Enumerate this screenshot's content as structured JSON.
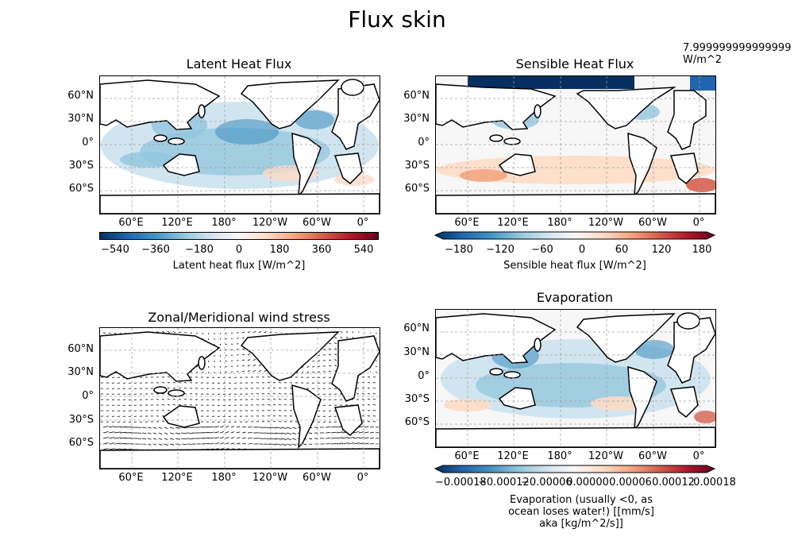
{
  "figure": {
    "title": "Flux skin"
  },
  "panels": {
    "latent": {
      "title": "Latent Heat Flux",
      "colorbar_label": "Latent heat flux [W/m^2]",
      "colorbar_ticks": [
        "−540",
        "−360",
        "−180",
        "0",
        "180",
        "360",
        "540"
      ]
    },
    "sensible": {
      "title": "Sensible Heat Flux",
      "colorbar_label": "Sensible heat flux [W/m^2]",
      "colorbar_ticks": [
        "−180",
        "−120",
        "−60",
        "0",
        "60",
        "120",
        "180"
      ],
      "corner_note_line1": "7.999999999999999",
      "corner_note_line2": "W/m^2"
    },
    "wind": {
      "title": "Zonal/Meridional wind stress"
    },
    "evap": {
      "title": "Evaporation",
      "colorbar_label_line1": "Evaporation (usually <0, as",
      "colorbar_label_line2": "ocean loses water!) [[mm/s]",
      "colorbar_label_line3": "aka [kg/m^2/s]]",
      "colorbar_ticks": [
        "−0.00018",
        "−0.00012",
        "−0.00006",
        "0.00000",
        "0.00006",
        "0.00012",
        "0.00018"
      ]
    }
  },
  "axes": {
    "lat_ticks": [
      "60°N",
      "30°N",
      "0°",
      "30°S",
      "60°S"
    ],
    "lon_ticks": [
      "60°E",
      "120°E",
      "180°",
      "120°W",
      "60°W",
      "0°"
    ]
  },
  "colors": {
    "cmap": [
      "#053061",
      "#2166ac",
      "#4393c3",
      "#92c5de",
      "#d1e5f0",
      "#f7f7f7",
      "#fddbc7",
      "#f4a582",
      "#d6604d",
      "#b2182b",
      "#67001f"
    ]
  }
}
